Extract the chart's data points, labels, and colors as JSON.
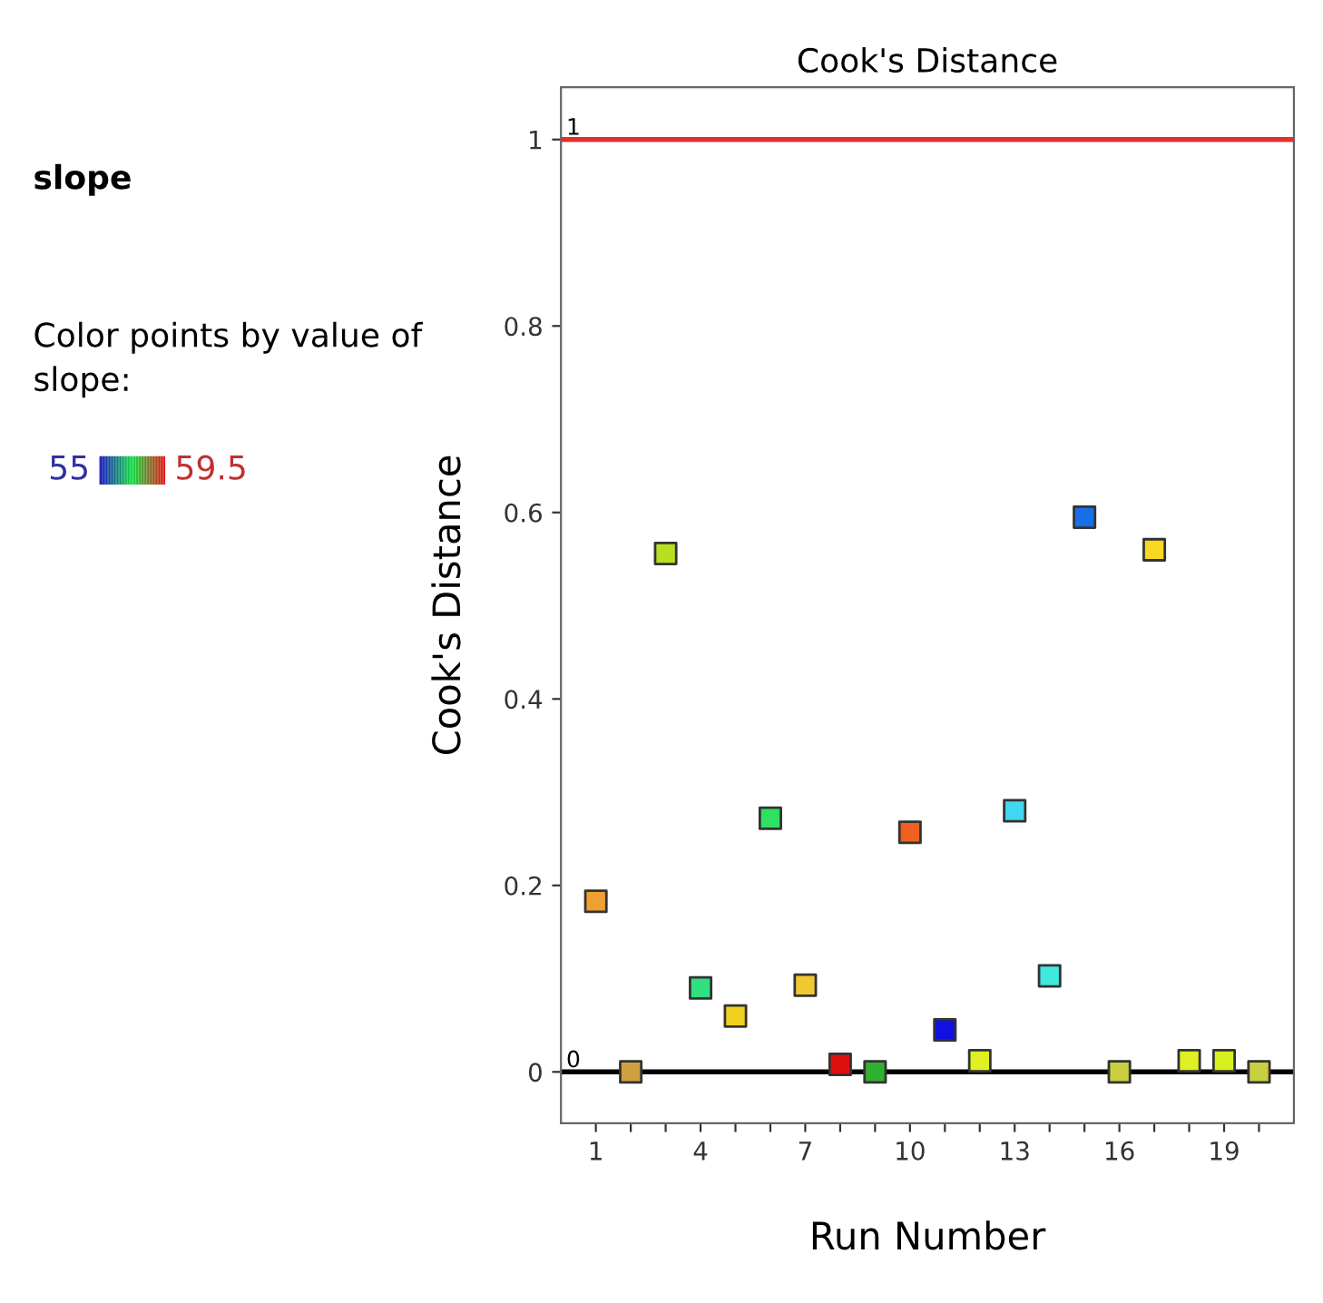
{
  "chart_data": {
    "type": "scatter",
    "title": "Cook's Distance",
    "xlabel": "Run Number",
    "ylabel": "Cook's Distance",
    "annotations": [
      "slope",
      "Color points by value of slope:",
      "55",
      "59.5"
    ],
    "x": [
      1,
      2,
      3,
      4,
      5,
      6,
      7,
      8,
      9,
      10,
      11,
      12,
      13,
      14,
      15,
      16,
      17,
      18,
      19,
      20
    ],
    "values": [
      0.183,
      0.0,
      0.556,
      0.09,
      0.06,
      0.272,
      0.093,
      0.008,
      0.0,
      0.257,
      0.045,
      0.012,
      0.28,
      0.103,
      0.595,
      0.0,
      0.56,
      0.012,
      0.012,
      0.0
    ],
    "colors": [
      "#f0a030",
      "#d0a040",
      "#b8e020",
      "#30e080",
      "#f0d020",
      "#30e060",
      "#f0c830",
      "#e01010",
      "#30b030",
      "#f06020",
      "#1010e0",
      "#e0f020",
      "#40d8f0",
      "#40e8e0",
      "#1870e8",
      "#c8d040",
      "#f8d820",
      "#e0f020",
      "#d8f020",
      "#c8d040"
    ],
    "marker": "square",
    "grid": false,
    "xlim": [
      0,
      21
    ],
    "ylim": [
      -0.055,
      1.056
    ],
    "xticks": [
      1,
      {
        "value": 2,
        "label": null
      },
      {
        "value": 3,
        "label": null
      },
      4,
      {
        "value": 5,
        "label": null
      },
      {
        "value": 6,
        "label": null
      },
      7,
      {
        "value": 8,
        "label": null
      },
      {
        "value": 9,
        "label": null
      },
      10,
      {
        "value": 11,
        "label": null
      },
      {
        "value": 12,
        "label": null
      },
      13,
      {
        "value": 14,
        "label": null
      },
      {
        "value": 15,
        "label": null
      },
      16,
      {
        "value": 17,
        "label": null
      },
      {
        "value": 18,
        "label": null
      },
      19,
      {
        "value": 20,
        "label": null
      }
    ],
    "yticks": [
      0,
      0.2,
      0.4,
      0.6,
      0.8,
      1
    ],
    "ref_lines": [
      {
        "axis": "y",
        "value": 1,
        "label": "1",
        "color": "#e03030"
      },
      {
        "axis": "y",
        "value": 0,
        "label": "0",
        "color": "#000000"
      }
    ]
  }
}
